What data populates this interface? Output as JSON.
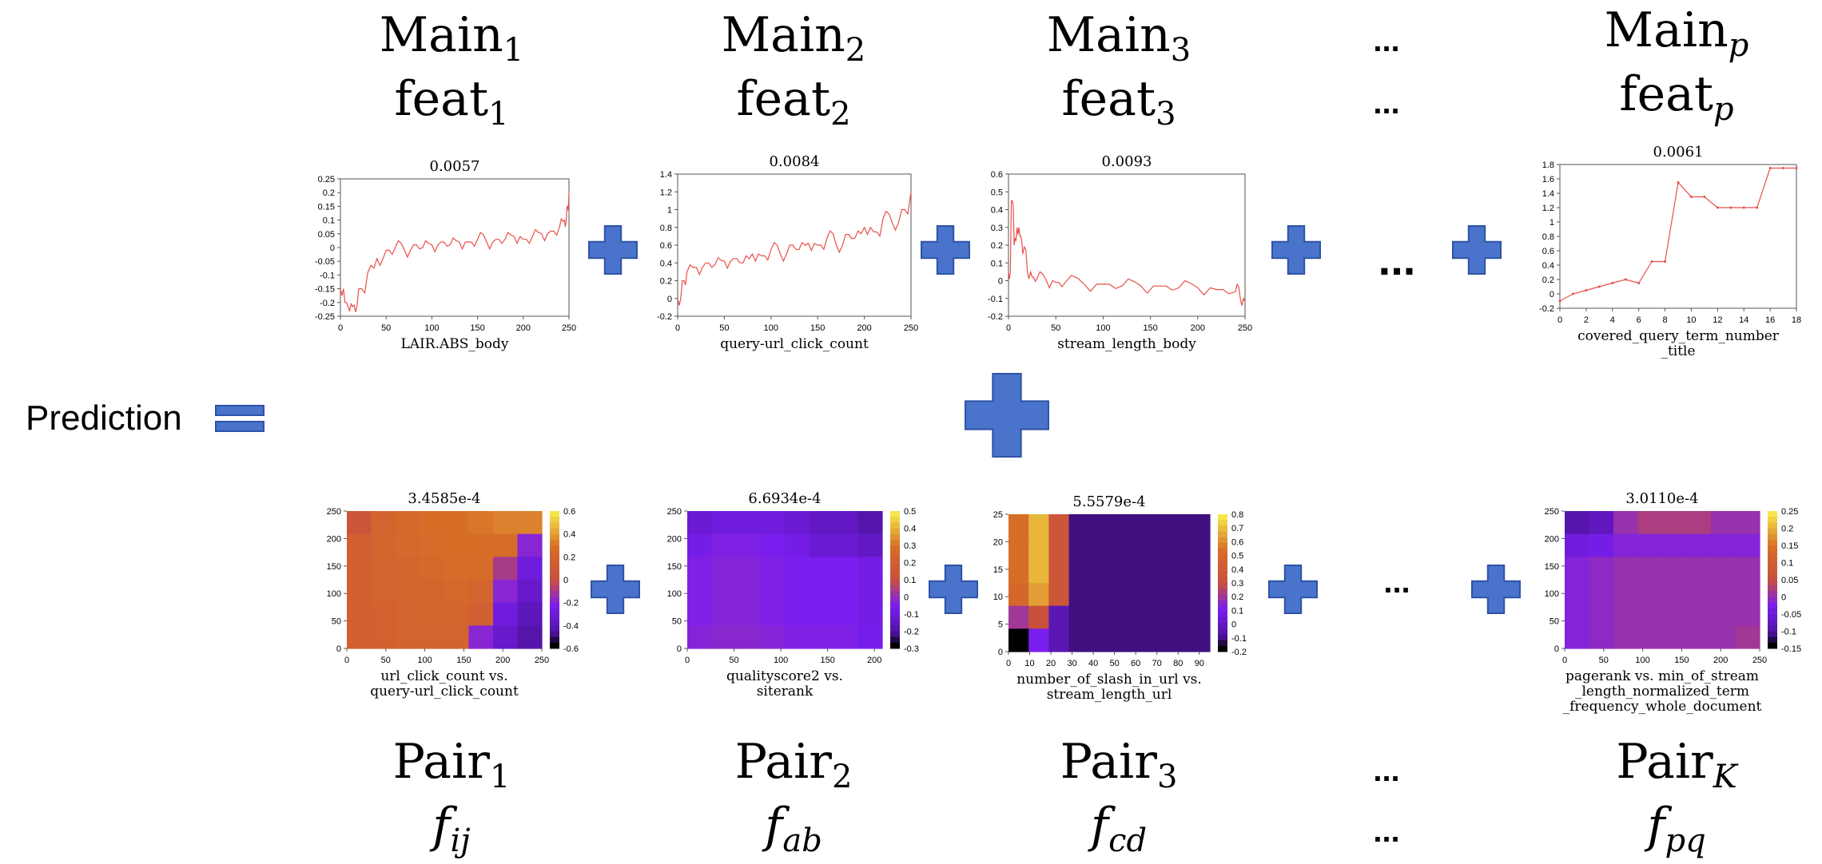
{
  "colors": {
    "plus": "#4a73cc",
    "plus_stroke": "#2f52a6",
    "line": "#e8504a",
    "heat_high": "#f5e64a",
    "heat_mid": "#c8501e",
    "heat_low": "#7a1ef0",
    "heat_min": "#000000"
  },
  "icons": {
    "plus": "plus-icon",
    "equals": "equals-icon"
  },
  "prediction_label": "Prediction",
  "ellipsis": "...",
  "main_effects": [
    {
      "name_base": "Main",
      "name_sub": "1",
      "feat_base": "feat",
      "feat_sub": "1"
    },
    {
      "name_base": "Main",
      "name_sub": "2",
      "feat_base": "feat",
      "feat_sub": "2"
    },
    {
      "name_base": "Main",
      "name_sub": "3",
      "feat_base": "feat",
      "feat_sub": "3"
    },
    {
      "name_base": "Main",
      "name_sub": "p",
      "feat_base": "feat",
      "feat_sub": "p"
    }
  ],
  "pair_effects": [
    {
      "name_base": "Pair",
      "name_sub": "1",
      "f_base": "f",
      "f_sub": "ij"
    },
    {
      "name_base": "Pair",
      "name_sub": "2",
      "f_base": "f",
      "f_sub": "ab"
    },
    {
      "name_base": "Pair",
      "name_sub": "3",
      "f_base": "f",
      "f_sub": "cd"
    },
    {
      "name_base": "Pair",
      "name_sub": "K",
      "f_base": "f",
      "f_sub": "pq"
    }
  ],
  "chart_data": [
    {
      "type": "line",
      "title": "0.0057",
      "xlabel": [
        "LAIR.ABS_body"
      ],
      "xlim": [
        0,
        250
      ],
      "ylim": [
        -0.25,
        0.25
      ],
      "xticks": [
        "0",
        "50",
        "100",
        "150",
        "200",
        "250"
      ],
      "yticks": [
        "0.25",
        "0.2",
        "0.15",
        "0.1",
        "0.05",
        "0",
        "-0.05",
        "-0.1",
        "-0.15",
        "-0.2",
        "-0.25"
      ],
      "series": [
        {
          "x": [
            0,
            5,
            10,
            15,
            20,
            30,
            40,
            50,
            60,
            70,
            80,
            90,
            100,
            110,
            120,
            130,
            140,
            150,
            160,
            170,
            180,
            190,
            200,
            210,
            220,
            230,
            240,
            245,
            248,
            250
          ],
          "y": [
            -0.15,
            -0.2,
            -0.23,
            -0.21,
            -0.15,
            -0.09,
            -0.04,
            -0.01,
            0.0,
            -0.01,
            0.01,
            0.0,
            0.01,
            0.02,
            0.01,
            0.02,
            0.02,
            0.03,
            0.02,
            0.03,
            0.03,
            0.04,
            0.03,
            0.04,
            0.05,
            0.06,
            0.08,
            0.1,
            0.15,
            0.2
          ]
        }
      ]
    },
    {
      "type": "line",
      "title": "0.0084",
      "xlabel": [
        "query-url_click_count"
      ],
      "xlim": [
        0,
        250
      ],
      "ylim": [
        -0.2,
        1.4
      ],
      "xticks": [
        "0",
        "50",
        "100",
        "150",
        "200",
        "250"
      ],
      "yticks": [
        "1.4",
        "1.2",
        "1",
        "0.8",
        "0.6",
        "0.4",
        "0.2",
        "0",
        "-0.2"
      ],
      "series": [
        {
          "x": [
            0,
            5,
            10,
            20,
            30,
            40,
            50,
            60,
            70,
            80,
            90,
            100,
            110,
            120,
            130,
            140,
            150,
            160,
            170,
            180,
            190,
            200,
            210,
            220,
            230,
            240,
            250
          ],
          "y": [
            0.0,
            0.2,
            0.3,
            0.35,
            0.4,
            0.38,
            0.42,
            0.45,
            0.4,
            0.5,
            0.48,
            0.55,
            0.5,
            0.6,
            0.55,
            0.62,
            0.6,
            0.68,
            0.6,
            0.72,
            0.68,
            0.8,
            0.75,
            0.9,
            0.85,
            1.0,
            1.2
          ]
        }
      ]
    },
    {
      "type": "line",
      "title": "0.0093",
      "xlabel": [
        "stream_length_body"
      ],
      "xlim": [
        0,
        250
      ],
      "ylim": [
        -0.2,
        0.6
      ],
      "xticks": [
        "0",
        "50",
        "100",
        "150",
        "200",
        "250"
      ],
      "yticks": [
        "0.6",
        "0.5",
        "0.4",
        "0.3",
        "0.2",
        "0.1",
        "0",
        "-0.1",
        "-0.2"
      ],
      "series": [
        {
          "x": [
            0,
            3,
            6,
            9,
            12,
            15,
            20,
            25,
            30,
            40,
            50,
            60,
            80,
            100,
            120,
            140,
            160,
            180,
            200,
            220,
            240,
            245,
            250
          ],
          "y": [
            0.05,
            0.45,
            0.2,
            0.3,
            0.25,
            0.15,
            0.05,
            0.02,
            0.01,
            0.0,
            -0.01,
            -0.01,
            -0.02,
            -0.02,
            -0.03,
            -0.03,
            -0.03,
            -0.04,
            -0.04,
            -0.05,
            -0.06,
            -0.1,
            -0.12
          ]
        }
      ]
    },
    {
      "type": "line",
      "title": "0.0061",
      "xlabel": [
        "covered_query_term_number",
        "_title"
      ],
      "xlim": [
        0,
        18
      ],
      "ylim": [
        -0.2,
        1.8
      ],
      "xticks": [
        "0",
        "2",
        "4",
        "6",
        "8",
        "10",
        "12",
        "14",
        "16",
        "18"
      ],
      "yticks": [
        "1.8",
        "1.6",
        "1.4",
        "1.2",
        "1",
        "0.8",
        "0.6",
        "0.4",
        "0.2",
        "0",
        "-0.2"
      ],
      "series": [
        {
          "x": [
            0,
            1,
            2,
            3,
            4,
            5,
            6,
            7,
            8,
            9,
            10,
            11,
            12,
            13,
            14,
            15,
            16,
            17,
            18
          ],
          "y": [
            -0.1,
            0.0,
            0.05,
            0.1,
            0.15,
            0.2,
            0.15,
            0.45,
            0.45,
            1.55,
            1.35,
            1.35,
            1.2,
            1.2,
            1.2,
            1.2,
            1.75,
            1.75,
            1.75
          ]
        }
      ]
    },
    {
      "type": "heatmap",
      "title": "3.4585e-4",
      "xlabel": [
        "url_click_count vs.",
        "query-url_click_count"
      ],
      "xlim": [
        0,
        250
      ],
      "ylim": [
        0,
        250
      ],
      "xticks": [
        "0",
        "50",
        "100",
        "150",
        "200",
        "250"
      ],
      "yticks": [
        "250",
        "200",
        "150",
        "100",
        "50",
        "0"
      ],
      "colorbar": {
        "min": -0.6,
        "max": 0.6,
        "ticks": [
          "0.6",
          "0.4",
          "0.2",
          "0",
          "-0.2",
          "-0.4",
          "-0.6"
        ]
      },
      "grid": [
        [
          0.05,
          0.2,
          0.25,
          0.3,
          0.3,
          0.32,
          0.35,
          0.35
        ],
        [
          0.15,
          0.22,
          0.25,
          0.28,
          0.3,
          0.3,
          0.28,
          -0.2
        ],
        [
          0.15,
          0.2,
          0.22,
          0.25,
          0.28,
          0.28,
          -0.1,
          -0.3
        ],
        [
          0.15,
          0.2,
          0.22,
          0.22,
          0.25,
          0.2,
          -0.2,
          -0.35
        ],
        [
          0.15,
          0.18,
          0.2,
          0.22,
          0.22,
          0.15,
          -0.3,
          -0.4
        ],
        [
          0.15,
          0.18,
          0.2,
          0.2,
          0.2,
          -0.2,
          -0.35,
          -0.45
        ]
      ]
    },
    {
      "type": "heatmap",
      "title": "6.6934e-4",
      "xlabel": [
        "qualityscore2 vs.",
        "siterank"
      ],
      "xlim": [
        0,
        250
      ],
      "ylim": [
        0,
        250
      ],
      "xticks": [
        "0",
        "50",
        "100",
        "150",
        "200"
      ],
      "yticks": [
        "250",
        "200",
        "150",
        "100",
        "50",
        "0"
      ],
      "colorbar": {
        "min": -0.3,
        "max": 0.5,
        "ticks": [
          "0.5",
          "0.4",
          "0.3",
          "0.2",
          "0.1",
          "0",
          "-0.1",
          "-0.2",
          "-0.3"
        ]
      },
      "grid": [
        [
          -0.12,
          -0.1,
          -0.1,
          -0.1,
          -0.12,
          -0.15,
          -0.15,
          -0.2
        ],
        [
          -0.08,
          -0.05,
          -0.05,
          -0.06,
          -0.08,
          -0.12,
          -0.12,
          -0.15
        ],
        [
          -0.05,
          -0.04,
          -0.04,
          -0.05,
          -0.06,
          -0.06,
          -0.06,
          -0.08
        ],
        [
          -0.05,
          -0.04,
          -0.04,
          -0.05,
          -0.06,
          -0.06,
          -0.06,
          -0.08
        ],
        [
          -0.05,
          -0.04,
          -0.04,
          -0.05,
          -0.06,
          -0.06,
          -0.06,
          -0.08
        ],
        [
          -0.04,
          -0.03,
          -0.03,
          -0.04,
          -0.05,
          -0.05,
          -0.05,
          -0.07
        ]
      ]
    },
    {
      "type": "heatmap",
      "title": "5.5579e-4",
      "xlabel": [
        "number_of_slash_in_url vs.",
        "stream_length_url"
      ],
      "xlim": [
        0,
        95
      ],
      "ylim": [
        0,
        25
      ],
      "xticks": [
        "0",
        "10",
        "20",
        "30",
        "40",
        "50",
        "60",
        "70",
        "80",
        "90"
      ],
      "yticks": [
        "25",
        "20",
        "15",
        "10",
        "5",
        "0"
      ],
      "colorbar": {
        "min": -0.2,
        "max": 0.8,
        "ticks": [
          "0.8",
          "0.7",
          "0.6",
          "0.5",
          "0.4",
          "0.3",
          "0.2",
          "0.1",
          "0",
          "-0.1",
          "-0.2"
        ]
      },
      "grid": [
        [
          0.55,
          0.7,
          0.35,
          -0.12,
          -0.12,
          -0.12,
          -0.12,
          -0.12,
          -0.12,
          -0.12
        ],
        [
          0.55,
          0.7,
          0.35,
          -0.12,
          -0.12,
          -0.12,
          -0.12,
          -0.12,
          -0.12,
          -0.12
        ],
        [
          0.55,
          0.7,
          0.35,
          -0.12,
          -0.12,
          -0.12,
          -0.12,
          -0.12,
          -0.12,
          -0.12
        ],
        [
          0.5,
          0.65,
          0.35,
          -0.12,
          -0.12,
          -0.12,
          -0.12,
          -0.12,
          -0.12,
          -0.12
        ],
        [
          0.2,
          0.3,
          -0.05,
          -0.12,
          -0.12,
          -0.12,
          -0.12,
          -0.12,
          -0.12,
          -0.12
        ],
        [
          -0.2,
          0.1,
          -0.05,
          -0.12,
          -0.12,
          -0.12,
          -0.12,
          -0.12,
          -0.12,
          -0.12
        ]
      ]
    },
    {
      "type": "heatmap",
      "title": "3.0110e-4",
      "xlabel": [
        "pagerank vs.  min_of_stream",
        "_length_normalized_term",
        "_frequency_whole_document"
      ],
      "xlim": [
        0,
        250
      ],
      "ylim": [
        0,
        250
      ],
      "xticks": [
        "0",
        "50",
        "100",
        "150",
        "200",
        "250"
      ],
      "yticks": [
        "250",
        "200",
        "150",
        "100",
        "50",
        "0"
      ],
      "colorbar": {
        "min": -0.15,
        "max": 0.25,
        "ticks": [
          "0.25",
          "0.2",
          "0.15",
          "0.1",
          "0.05",
          "0",
          "-0.05",
          "-0.1",
          "-0.15"
        ]
      },
      "grid": [
        [
          -0.1,
          -0.08,
          0.0,
          0.02,
          0.02,
          0.02,
          0.0,
          0.0
        ],
        [
          -0.05,
          -0.04,
          -0.02,
          -0.02,
          -0.02,
          -0.02,
          -0.02,
          -0.02
        ],
        [
          -0.02,
          -0.01,
          0.0,
          0.0,
          0.0,
          0.0,
          0.0,
          0.0
        ],
        [
          -0.02,
          -0.01,
          0.0,
          0.0,
          0.0,
          0.0,
          0.0,
          0.0
        ],
        [
          -0.02,
          -0.01,
          0.0,
          0.0,
          0.0,
          0.0,
          0.0,
          0.0
        ],
        [
          -0.02,
          -0.01,
          0.0,
          0.0,
          0.0,
          0.0,
          0.0,
          0.01
        ]
      ]
    }
  ]
}
